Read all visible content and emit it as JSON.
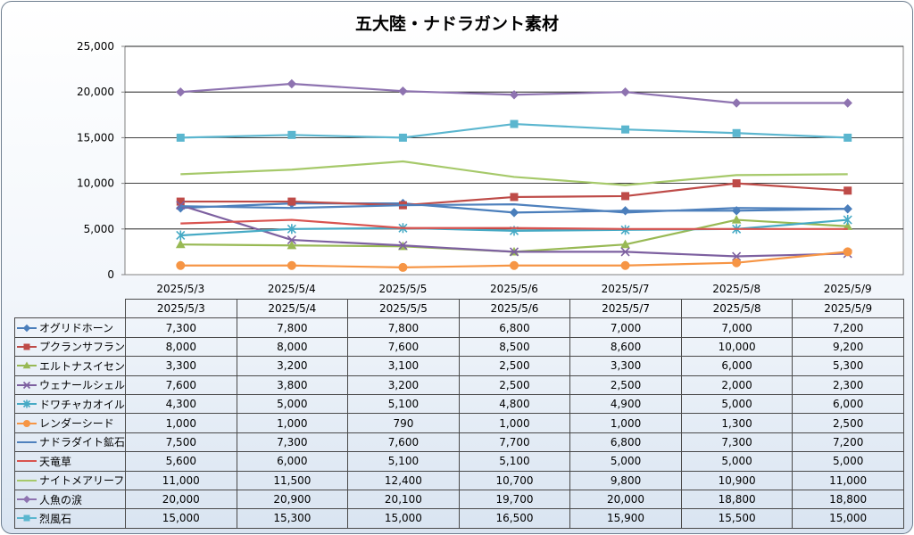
{
  "chart_data": {
    "type": "line",
    "title": "五大陸・ナドラガント素材",
    "categories": [
      "2025/5/3",
      "2025/5/4",
      "2025/5/5",
      "2025/5/6",
      "2025/5/7",
      "2025/5/8",
      "2025/5/9"
    ],
    "y_tick_labels": [
      "0",
      "5,000",
      "10,000",
      "15,000",
      "20,000",
      "25,000"
    ],
    "ylim": [
      0,
      25000
    ],
    "grid": true,
    "legend": "data-table-left",
    "series": [
      {
        "name": "オグリドホーン",
        "color": "#4a7ebb",
        "marker": "diamond",
        "values": [
          7300,
          7800,
          7800,
          6800,
          7000,
          7000,
          7200
        ],
        "labels": [
          "7,300",
          "7,800",
          "7,800",
          "6,800",
          "7,000",
          "7,000",
          "7,200"
        ]
      },
      {
        "name": "プクランサフラン",
        "color": "#be4b48",
        "marker": "square",
        "values": [
          8000,
          8000,
          7600,
          8500,
          8600,
          10000,
          9200
        ],
        "labels": [
          "8,000",
          "8,000",
          "7,600",
          "8,500",
          "8,600",
          "10,000",
          "9,200"
        ]
      },
      {
        "name": "エルトナスイセン",
        "color": "#98b954",
        "marker": "triangle",
        "values": [
          3300,
          3200,
          3100,
          2500,
          3300,
          6000,
          5300
        ],
        "labels": [
          "3,300",
          "3,200",
          "3,100",
          "2,500",
          "3,300",
          "6,000",
          "5,300"
        ]
      },
      {
        "name": "ウェナールシェル",
        "color": "#7d60a0",
        "marker": "x",
        "values": [
          7600,
          3800,
          3200,
          2500,
          2500,
          2000,
          2300
        ],
        "labels": [
          "7,600",
          "3,800",
          "3,200",
          "2,500",
          "2,500",
          "2,000",
          "2,300"
        ]
      },
      {
        "name": "ドワチャカオイル",
        "color": "#46aac5",
        "marker": "star",
        "values": [
          4300,
          5000,
          5100,
          4800,
          4900,
          5000,
          6000
        ],
        "labels": [
          "4,300",
          "5,000",
          "5,100",
          "4,800",
          "4,900",
          "5,000",
          "6,000"
        ]
      },
      {
        "name": "レンダーシード",
        "color": "#f69545",
        "marker": "circle",
        "values": [
          1000,
          1000,
          790,
          1000,
          1000,
          1300,
          2500
        ],
        "labels": [
          "1,000",
          "1,000",
          "790",
          "1,000",
          "1,000",
          "1,300",
          "2,500"
        ]
      },
      {
        "name": "ナドラダイト鉱石",
        "color": "#4f81bd",
        "marker": "none",
        "values": [
          7500,
          7300,
          7600,
          7700,
          6800,
          7300,
          7200
        ],
        "labels": [
          "7,500",
          "7,300",
          "7,600",
          "7,700",
          "6,800",
          "7,300",
          "7,200"
        ]
      },
      {
        "name": "天竜草",
        "color": "#d9534f",
        "marker": "none",
        "values": [
          5600,
          6000,
          5100,
          5100,
          5000,
          5000,
          5000
        ],
        "labels": [
          "5,600",
          "6,000",
          "5,100",
          "5,100",
          "5,000",
          "5,000",
          "5,000"
        ]
      },
      {
        "name": "ナイトメアリーフ",
        "color": "#a6c96a",
        "marker": "none",
        "values": [
          11000,
          11500,
          12400,
          10700,
          9800,
          10900,
          11000
        ],
        "labels": [
          "11,000",
          "11,500",
          "12,400",
          "10,700",
          "9,800",
          "10,900",
          "11,000"
        ]
      },
      {
        "name": "人魚の涙",
        "color": "#8e73b0",
        "marker": "diamond",
        "values": [
          20000,
          20900,
          20100,
          19700,
          20000,
          18800,
          18800
        ],
        "labels": [
          "20,000",
          "20,900",
          "20,100",
          "19,700",
          "20,000",
          "18,800",
          "18,800"
        ]
      },
      {
        "name": "烈風石",
        "color": "#5bb6cf",
        "marker": "square",
        "values": [
          15000,
          15300,
          15000,
          16500,
          15900,
          15500,
          15000
        ],
        "labels": [
          "15,000",
          "15,300",
          "15,000",
          "16,500",
          "15,900",
          "15,500",
          "15,000"
        ]
      }
    ]
  }
}
